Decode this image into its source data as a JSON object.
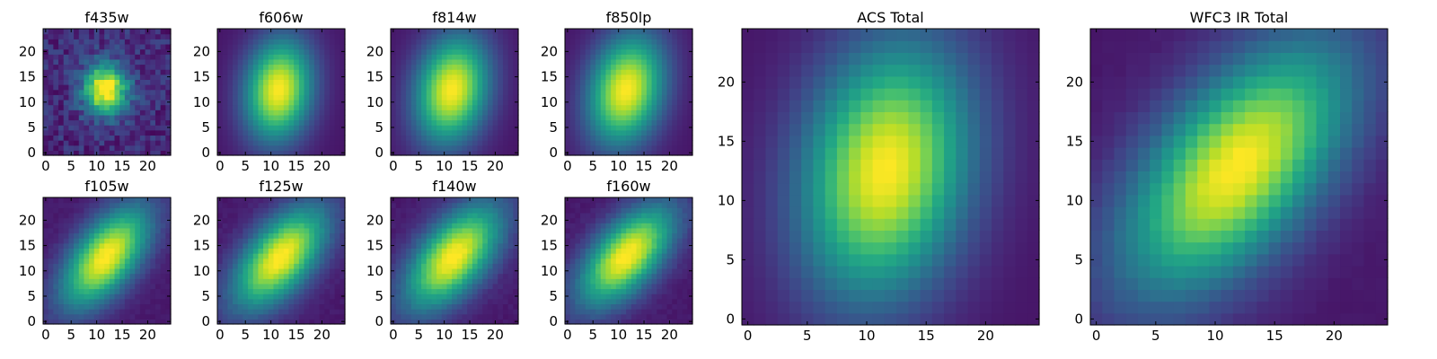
{
  "chart_data": [
    {
      "type": "heatmap",
      "title": "f435w",
      "grid": false,
      "shape": "image",
      "center": [
        11.8,
        12.6
      ],
      "sigma": [
        2.7,
        3.1
      ],
      "tilt_deg": 0,
      "noise": 0.11,
      "seed": 11,
      "xticks": [
        0,
        5,
        10,
        15,
        20
      ],
      "yticks": [
        0,
        5,
        10,
        15,
        20
      ],
      "xlim": [
        0,
        24
      ],
      "ylim": [
        0,
        24
      ]
    },
    {
      "type": "heatmap",
      "title": "f606w",
      "grid": false,
      "shape": "image",
      "center": [
        11.5,
        12.5
      ],
      "sigma": [
        4.0,
        6.2
      ],
      "tilt_deg": -8,
      "noise": 0.0,
      "seed": 12,
      "xticks": [
        0,
        5,
        10,
        15,
        20
      ],
      "yticks": [
        0,
        5,
        10,
        15,
        20
      ],
      "xlim": [
        0,
        24
      ],
      "ylim": [
        0,
        24
      ]
    },
    {
      "type": "heatmap",
      "title": "f814w",
      "grid": false,
      "shape": "image",
      "center": [
        11.5,
        12.5
      ],
      "sigma": [
        4.3,
        6.6
      ],
      "tilt_deg": -12,
      "noise": 0.0,
      "seed": 13,
      "xticks": [
        0,
        5,
        10,
        15,
        20
      ],
      "yticks": [
        0,
        5,
        10,
        15,
        20
      ],
      "xlim": [
        0,
        24
      ],
      "ylim": [
        0,
        24
      ]
    },
    {
      "type": "heatmap",
      "title": "f850lp",
      "grid": false,
      "shape": "image",
      "center": [
        11.5,
        12.5
      ],
      "sigma": [
        4.4,
        6.8
      ],
      "tilt_deg": -14,
      "noise": 0.0,
      "seed": 14,
      "xticks": [
        0,
        5,
        10,
        15,
        20
      ],
      "yticks": [
        0,
        5,
        10,
        15,
        20
      ],
      "xlim": [
        0,
        24
      ],
      "ylim": [
        0,
        24
      ]
    },
    {
      "type": "heatmap",
      "title": "f105w",
      "grid": false,
      "shape": "image",
      "center": [
        11.8,
        12.8
      ],
      "sigma": [
        3.6,
        7.2
      ],
      "tilt_deg": -38,
      "noise": 0.02,
      "seed": 15,
      "xticks": [
        0,
        5,
        10,
        15,
        20
      ],
      "yticks": [
        0,
        5,
        10,
        15,
        20
      ],
      "xlim": [
        0,
        24
      ],
      "ylim": [
        0,
        24
      ]
    },
    {
      "type": "heatmap",
      "title": "f125w",
      "grid": false,
      "shape": "image",
      "center": [
        11.8,
        12.6
      ],
      "sigma": [
        3.8,
        7.4
      ],
      "tilt_deg": -40,
      "noise": 0.02,
      "seed": 16,
      "xticks": [
        0,
        5,
        10,
        15,
        20
      ],
      "yticks": [
        0,
        5,
        10,
        15,
        20
      ],
      "xlim": [
        0,
        24
      ],
      "ylim": [
        0,
        24
      ]
    },
    {
      "type": "heatmap",
      "title": "f140w",
      "grid": false,
      "shape": "image",
      "center": [
        11.8,
        12.8
      ],
      "sigma": [
        3.9,
        7.6
      ],
      "tilt_deg": -40,
      "noise": 0.02,
      "seed": 17,
      "xticks": [
        0,
        5,
        10,
        15,
        20
      ],
      "yticks": [
        0,
        5,
        10,
        15,
        20
      ],
      "xlim": [
        0,
        24
      ],
      "ylim": [
        0,
        24
      ]
    },
    {
      "type": "heatmap",
      "title": "f160w",
      "grid": false,
      "shape": "image",
      "center": [
        11.6,
        13.0
      ],
      "sigma": [
        3.7,
        7.4
      ],
      "tilt_deg": -42,
      "noise": 0.02,
      "seed": 18,
      "xticks": [
        0,
        5,
        10,
        15,
        20
      ],
      "yticks": [
        0,
        5,
        10,
        15,
        20
      ],
      "xlim": [
        0,
        24
      ],
      "ylim": [
        0,
        24
      ]
    },
    {
      "type": "heatmap",
      "title": "ACS Total",
      "grid": false,
      "shape": "image",
      "center": [
        11.6,
        12.6
      ],
      "sigma": [
        4.2,
        6.6
      ],
      "tilt_deg": -12,
      "noise": 0.0,
      "seed": 19,
      "xticks": [
        0,
        5,
        10,
        15,
        20
      ],
      "yticks": [
        0,
        5,
        10,
        15,
        20
      ],
      "xlim": [
        0,
        24
      ],
      "ylim": [
        0,
        24
      ]
    },
    {
      "type": "heatmap",
      "title": "WFC3 IR Total",
      "grid": false,
      "shape": "image",
      "center": [
        11.8,
        12.8
      ],
      "sigma": [
        3.9,
        7.6
      ],
      "tilt_deg": -40,
      "noise": 0.01,
      "seed": 20,
      "xticks": [
        0,
        5,
        10,
        15,
        20
      ],
      "yticks": [
        0,
        5,
        10,
        15,
        20
      ],
      "xlim": [
        0,
        24
      ],
      "ylim": [
        0,
        24
      ]
    }
  ]
}
